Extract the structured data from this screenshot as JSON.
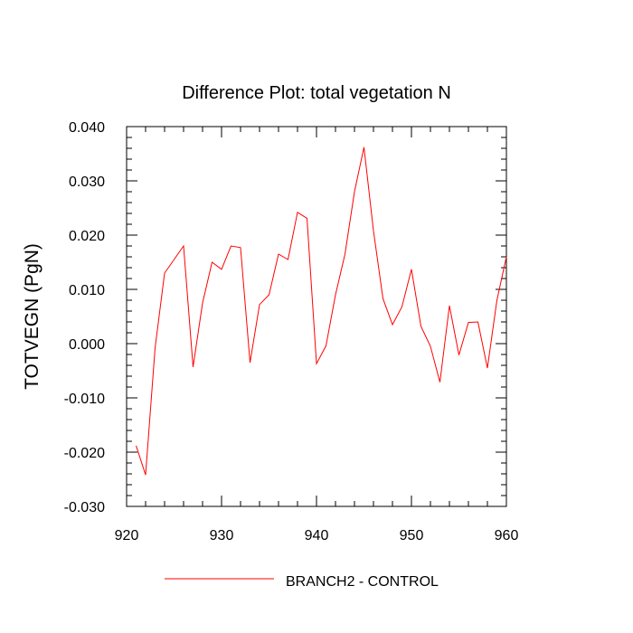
{
  "chart_data": {
    "type": "line",
    "title": "Difference Plot: total vegetation N",
    "xlabel": "",
    "ylabel": "TOTVEGN  (PgN)",
    "xlim": [
      920,
      960
    ],
    "ylim": [
      -0.03,
      0.04
    ],
    "x_ticks": [
      920,
      930,
      940,
      950,
      960
    ],
    "x_tick_labels": [
      "920",
      "930",
      "940",
      "950",
      "960"
    ],
    "y_ticks": [
      -0.03,
      -0.02,
      -0.01,
      0.0,
      0.01,
      0.02,
      0.03,
      0.04
    ],
    "y_tick_labels": [
      "-0.030",
      "-0.020",
      "-0.010",
      "0.000",
      "0.010",
      "0.020",
      "0.030",
      "0.040"
    ],
    "grid": false,
    "legend_position": "bottom-center",
    "series": [
      {
        "name": "BRANCH2 - CONTROL",
        "color": "#ff0000",
        "x": [
          921,
          922,
          923,
          924,
          925,
          926,
          927,
          928,
          929,
          930,
          931,
          932,
          933,
          934,
          935,
          936,
          937,
          938,
          939,
          940,
          941,
          942,
          943,
          944,
          945,
          946,
          947,
          948,
          949,
          950,
          951,
          952,
          953,
          954,
          955,
          956,
          957,
          958,
          959,
          960
        ],
        "values": [
          -0.0188,
          -0.0242,
          -0.0008,
          0.013,
          0.0155,
          0.018,
          -0.0043,
          0.0075,
          0.015,
          0.0137,
          0.018,
          0.0177,
          -0.0035,
          0.0072,
          0.009,
          0.0165,
          0.0155,
          0.0242,
          0.0231,
          -0.0037,
          -0.0004,
          0.009,
          0.0165,
          0.028,
          0.0362,
          0.0208,
          0.0083,
          0.0035,
          0.0068,
          0.0137,
          0.0032,
          -0.0005,
          -0.0071,
          0.007,
          -0.0021,
          0.0039,
          0.004,
          -0.0045,
          0.008,
          0.016
        ]
      }
    ]
  }
}
